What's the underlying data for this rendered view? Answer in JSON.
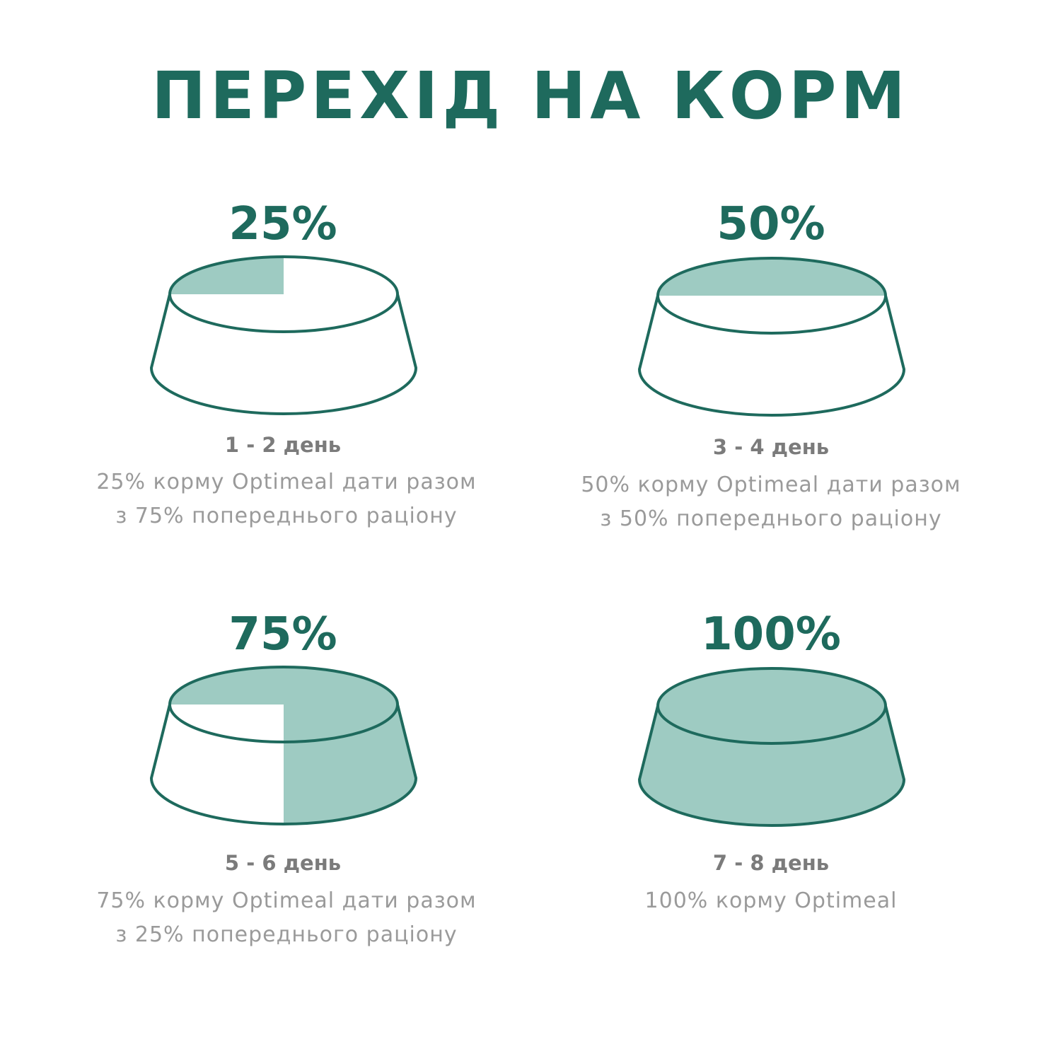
{
  "title": "ПЕРЕХІД НА КОРМ",
  "colors": {
    "accent": "#1e6a5d",
    "fill": "#9ecbc2",
    "text": "#9a9a9a"
  },
  "steps": [
    {
      "percent_label": "25%",
      "fill_fraction": 0.25,
      "days": "1 - 2 день",
      "line1": "25% корму Optimeal дати разом",
      "line2": "з 75% попереднього раціону"
    },
    {
      "percent_label": "50%",
      "fill_fraction": 0.5,
      "days": "3 - 4 день",
      "line1": "50% корму Optimeal дати разом",
      "line2": "з 50% попереднього раціону"
    },
    {
      "percent_label": "75%",
      "fill_fraction": 0.75,
      "days": "5 - 6 день",
      "line1": "75% корму Optimeal дати разом",
      "line2": "з 25% попереднього раціону"
    },
    {
      "percent_label": "100%",
      "fill_fraction": 1,
      "days": "7 - 8 день",
      "line1": "100% корму Optimeal",
      "line2": ""
    }
  ]
}
